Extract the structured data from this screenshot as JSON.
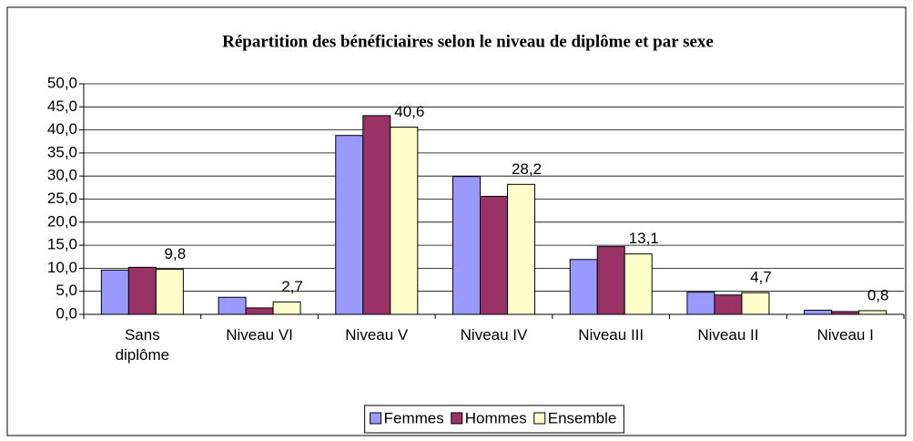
{
  "chart_data": {
    "type": "bar",
    "title": "Répartition des bénéficiaires selon le niveau de diplôme et par sexe",
    "categories": [
      "Sans diplôme",
      "Niveau VI",
      "Niveau V",
      "Niveau IV",
      "Niveau III",
      "Niveau II",
      "Niveau I"
    ],
    "series": [
      {
        "name": "Femmes",
        "color": "#9999ff",
        "values": [
          9.6,
          3.7,
          38.8,
          29.9,
          11.9,
          4.8,
          0.9
        ]
      },
      {
        "name": "Hommes",
        "color": "#993366",
        "values": [
          10.2,
          1.4,
          43.1,
          25.6,
          14.7,
          4.2,
          0.6
        ]
      },
      {
        "name": "Ensemble",
        "color": "#ffffcc",
        "values": [
          9.8,
          2.7,
          40.6,
          28.2,
          13.1,
          4.7,
          0.8
        ],
        "value_labels": [
          "9,8",
          "2,7",
          "40,6",
          "28,2",
          "13,1",
          "4,7",
          "0,8"
        ]
      }
    ],
    "ylim": [
      0,
      50
    ],
    "yticks": [
      {
        "value": 0,
        "label": "0,0"
      },
      {
        "value": 5,
        "label": "5,0"
      },
      {
        "value": 10,
        "label": "10,0"
      },
      {
        "value": 15,
        "label": "15,0"
      },
      {
        "value": 20,
        "label": "20,0"
      },
      {
        "value": 25,
        "label": "25,0"
      },
      {
        "value": 30,
        "label": "30,0"
      },
      {
        "value": 35,
        "label": "35,0"
      },
      {
        "value": 40,
        "label": "40,0"
      },
      {
        "value": 45,
        "label": "45,0"
      },
      {
        "value": 50,
        "label": "50,0"
      }
    ],
    "grid": true,
    "legend": "bottom"
  }
}
